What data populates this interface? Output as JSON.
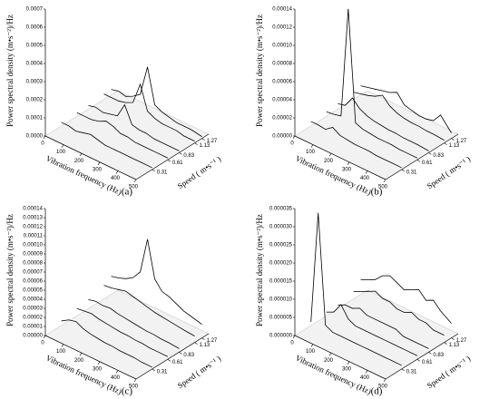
{
  "chart_data": [
    {
      "type": "waterfall3d",
      "panel_label": "(a)",
      "z_label": "Power spectral density (m•s⁻²)/Hz",
      "x_label": "Vibration frequency (Hz)",
      "speed_label": "Speed ( m•s⁻¹ )",
      "color": "#000000",
      "x": [
        0,
        40,
        80,
        120,
        160,
        200,
        240,
        280,
        320,
        360,
        400,
        440,
        500
      ],
      "xlim": [
        0,
        500
      ],
      "xticks": [
        0,
        100,
        200,
        300,
        400,
        500
      ],
      "zlim": [
        0,
        0.0007
      ],
      "zticks": [
        {
          "value": 0,
          "label": "0.0000"
        },
        0.0001,
        0.0002,
        0.0003,
        0.0004,
        0.0005,
        0.0006,
        0.0007
      ],
      "series": [
        {
          "speed": 0.31,
          "values": [
            2e-05,
            2e-05,
            1e-05,
            2e-05,
            3e-05,
            2e-05,
            1e-05,
            1e-05,
            1e-05,
            1e-05,
            1e-05,
            1e-05,
            1e-05
          ]
        },
        {
          "speed": 0.61,
          "values": [
            2e-05,
            2e-05,
            2e-05,
            3e-05,
            5e-05,
            4e-05,
            2e-05,
            2e-05,
            1e-05,
            1e-05,
            1e-05,
            1e-05,
            1e-05
          ]
        },
        {
          "speed": 0.83,
          "values": [
            2e-05,
            3e-05,
            2e-05,
            3e-05,
            4e-05,
            0.00012,
            3e-05,
            2e-05,
            2e-05,
            1e-05,
            1e-05,
            1e-05,
            1e-05
          ]
        },
        {
          "speed": 1.13,
          "values": [
            3e-05,
            3e-05,
            3e-05,
            4e-05,
            6e-05,
            0.00018,
            5e-05,
            3e-05,
            2e-05,
            2e-05,
            2e-05,
            1e-05,
            1e-05
          ]
        },
        {
          "speed": 1.27,
          "values": [
            3e-05,
            4e-05,
            3e-05,
            5e-05,
            8e-05,
            0.00025,
            6e-05,
            4e-05,
            3e-05,
            2e-05,
            2e-05,
            2e-05,
            1e-05
          ]
        }
      ]
    },
    {
      "type": "waterfall3d",
      "panel_label": "(b)",
      "z_label": "Power spectral density (m•s⁻²)/Hz",
      "x_label": "Vibration frequency (Hz)",
      "speed_label": "Speed ( m•s⁻¹ )",
      "color": "#000000",
      "x": [
        0,
        40,
        80,
        120,
        160,
        200,
        240,
        280,
        320,
        360,
        400,
        440,
        500
      ],
      "xlim": [
        0,
        500
      ],
      "xticks": [
        0,
        100,
        200,
        300,
        400,
        500
      ],
      "zlim": [
        0,
        0.00014
      ],
      "zticks": [
        {
          "value": 0,
          "label": "0.00000"
        },
        2e-05,
        4e-05,
        6e-05,
        8e-05,
        {
          "value": 0.0001,
          "label": "0.00010"
        },
        0.00012,
        0.00014
      ],
      "series": [
        {
          "speed": 0.31,
          "values": [
            5e-06,
            5e-06,
            4e-06,
            1e-05,
            5e-06,
            4e-06,
            3e-06,
            3e-06,
            3e-06,
            2e-06,
            2e-06,
            2e-06,
            2e-06
          ]
        },
        {
          "speed": 0.61,
          "values": [
            5e-06,
            6e-06,
            8e-06,
            0.00013,
            8e-06,
            5e-06,
            4e-06,
            3e-06,
            3e-06,
            3e-06,
            2e-06,
            2e-06,
            2e-06
          ]
        },
        {
          "speed": 0.83,
          "values": [
            6e-06,
            8e-06,
            2e-05,
            1.2e-05,
            8e-06,
            6e-06,
            5e-06,
            4e-06,
            4e-06,
            3e-06,
            3e-06,
            3e-06,
            2e-06
          ]
        },
        {
          "speed": 1.13,
          "values": [
            8e-06,
            1e-05,
            1.2e-05,
            1.5e-05,
            2e-05,
            1.2e-05,
            8e-06,
            6e-06,
            5e-06,
            5e-06,
            4e-06,
            4e-06,
            3e-06
          ]
        },
        {
          "speed": 1.27,
          "values": [
            1e-05,
            1.2e-05,
            1.4e-05,
            1.6e-05,
            1.8e-05,
            2.2e-05,
            1.2e-05,
            1e-05,
            8e-06,
            8e-06,
            1e-05,
            2e-05,
            6e-06
          ]
        }
      ]
    },
    {
      "type": "waterfall3d",
      "panel_label": "(c)",
      "z_label": "Power spectral density (m•s⁻²)/Hz",
      "x_label": "Vibration frequency (Hz)",
      "speed_label": "Speed ( m•s⁻¹ )",
      "color": "#000000",
      "x": [
        0,
        40,
        80,
        120,
        160,
        200,
        240,
        280,
        320,
        360,
        400,
        440,
        500
      ],
      "xlim": [
        0,
        500
      ],
      "xticks": [
        0,
        100,
        200,
        300,
        400,
        500
      ],
      "zlim": [
        0,
        0.00014
      ],
      "zticks": [
        {
          "value": 0,
          "label": "0.00000"
        },
        1e-05,
        2e-05,
        3e-05,
        4e-05,
        5e-05,
        6e-05,
        7e-05,
        8e-05,
        9e-05,
        {
          "value": 0.0001,
          "label": "0.00010"
        },
        0.00011,
        0.00012,
        0.00013,
        0.00014
      ],
      "series": [
        {
          "speed": 0.31,
          "values": [
            5e-06,
            1e-05,
            1.2e-05,
            8e-06,
            6e-06,
            5e-06,
            4e-06,
            4e-06,
            3e-06,
            3e-06,
            3e-06,
            2e-06,
            2e-06
          ]
        },
        {
          "speed": 0.61,
          "values": [
            8e-06,
            9e-06,
            1e-05,
            8e-06,
            7e-06,
            6e-06,
            5e-06,
            5e-06,
            4e-06,
            4e-06,
            3e-06,
            3e-06,
            3e-06
          ]
        },
        {
          "speed": 0.83,
          "values": [
            1e-05,
            1.2e-05,
            1.1e-05,
            1.2e-05,
            1e-05,
            9e-06,
            8e-06,
            7e-06,
            6e-06,
            6e-06,
            5e-06,
            5e-06,
            4e-06
          ]
        },
        {
          "speed": 1.13,
          "values": [
            1.5e-05,
            1.6e-05,
            1.8e-05,
            2e-05,
            1.8e-05,
            1.6e-05,
            1.4e-05,
            1.2e-05,
            1.1e-05,
            1e-05,
            9e-06,
            8e-06,
            7e-06
          ]
        },
        {
          "speed": 1.27,
          "values": [
            2e-05,
            2.2e-05,
            2.5e-05,
            3e-05,
            4e-05,
            8e-05,
            4e-05,
            3e-05,
            2.8e-05,
            2.4e-05,
            2e-05,
            1.8e-05,
            1.5e-05
          ]
        }
      ]
    },
    {
      "type": "waterfall3d",
      "panel_label": "(d)",
      "z_label": "Power spectral density (m•s⁻²)/Hz",
      "x_label": "Vibration frequency (Hz)",
      "speed_label": "Speed ( m•s⁻¹ )",
      "color": "#000000",
      "x": [
        0,
        40,
        80,
        120,
        160,
        200,
        240,
        280,
        320,
        360,
        400,
        440,
        500
      ],
      "xlim": [
        0,
        500
      ],
      "xticks": [
        0,
        100,
        200,
        300,
        400,
        500
      ],
      "zlim": [
        0,
        3.5e-05
      ],
      "zticks": [
        {
          "value": 0,
          "label": "0.000000"
        },
        5e-06,
        {
          "value": 1e-05,
          "label": "0.000010"
        },
        1.5e-05,
        {
          "value": 2e-05,
          "label": "0.000020"
        },
        2.5e-05,
        {
          "value": 3e-05,
          "label": "0.000030"
        },
        3.5e-05
      ],
      "series": [
        {
          "speed": 0.31,
          "values": [
            1e-06,
            3.2e-05,
            2e-06,
            1e-06,
            1e-06,
            1e-06,
            1e-06,
            1e-06,
            1e-06,
            1e-06,
            1e-06,
            1e-06,
            1e-06
          ]
        },
        {
          "speed": 0.61,
          "values": [
            1e-06,
            2e-06,
            5e-06,
            2e-06,
            1e-06,
            1e-06,
            1e-06,
            1e-06,
            1e-06,
            1e-06,
            1e-06,
            1e-06,
            1e-06
          ]
        },
        {
          "speed": 0.83,
          "values": [
            1e-06,
            2e-06,
            2e-06,
            3e-06,
            2e-06,
            2e-06,
            2e-06,
            2e-06,
            2e-06,
            1e-06,
            1e-06,
            1e-06,
            1e-06
          ]
        },
        {
          "speed": 1.13,
          "values": [
            2e-06,
            3e-06,
            4e-06,
            5e-06,
            4e-06,
            4e-06,
            3e-06,
            3e-06,
            4e-06,
            3e-06,
            3e-06,
            2e-06,
            2e-06
          ]
        },
        {
          "speed": 1.27,
          "values": [
            4e-06,
            5e-06,
            6e-06,
            8e-06,
            9e-06,
            8e-06,
            7e-06,
            8e-06,
            9e-06,
            7e-06,
            8e-06,
            6e-06,
            4e-06
          ]
        }
      ]
    }
  ]
}
